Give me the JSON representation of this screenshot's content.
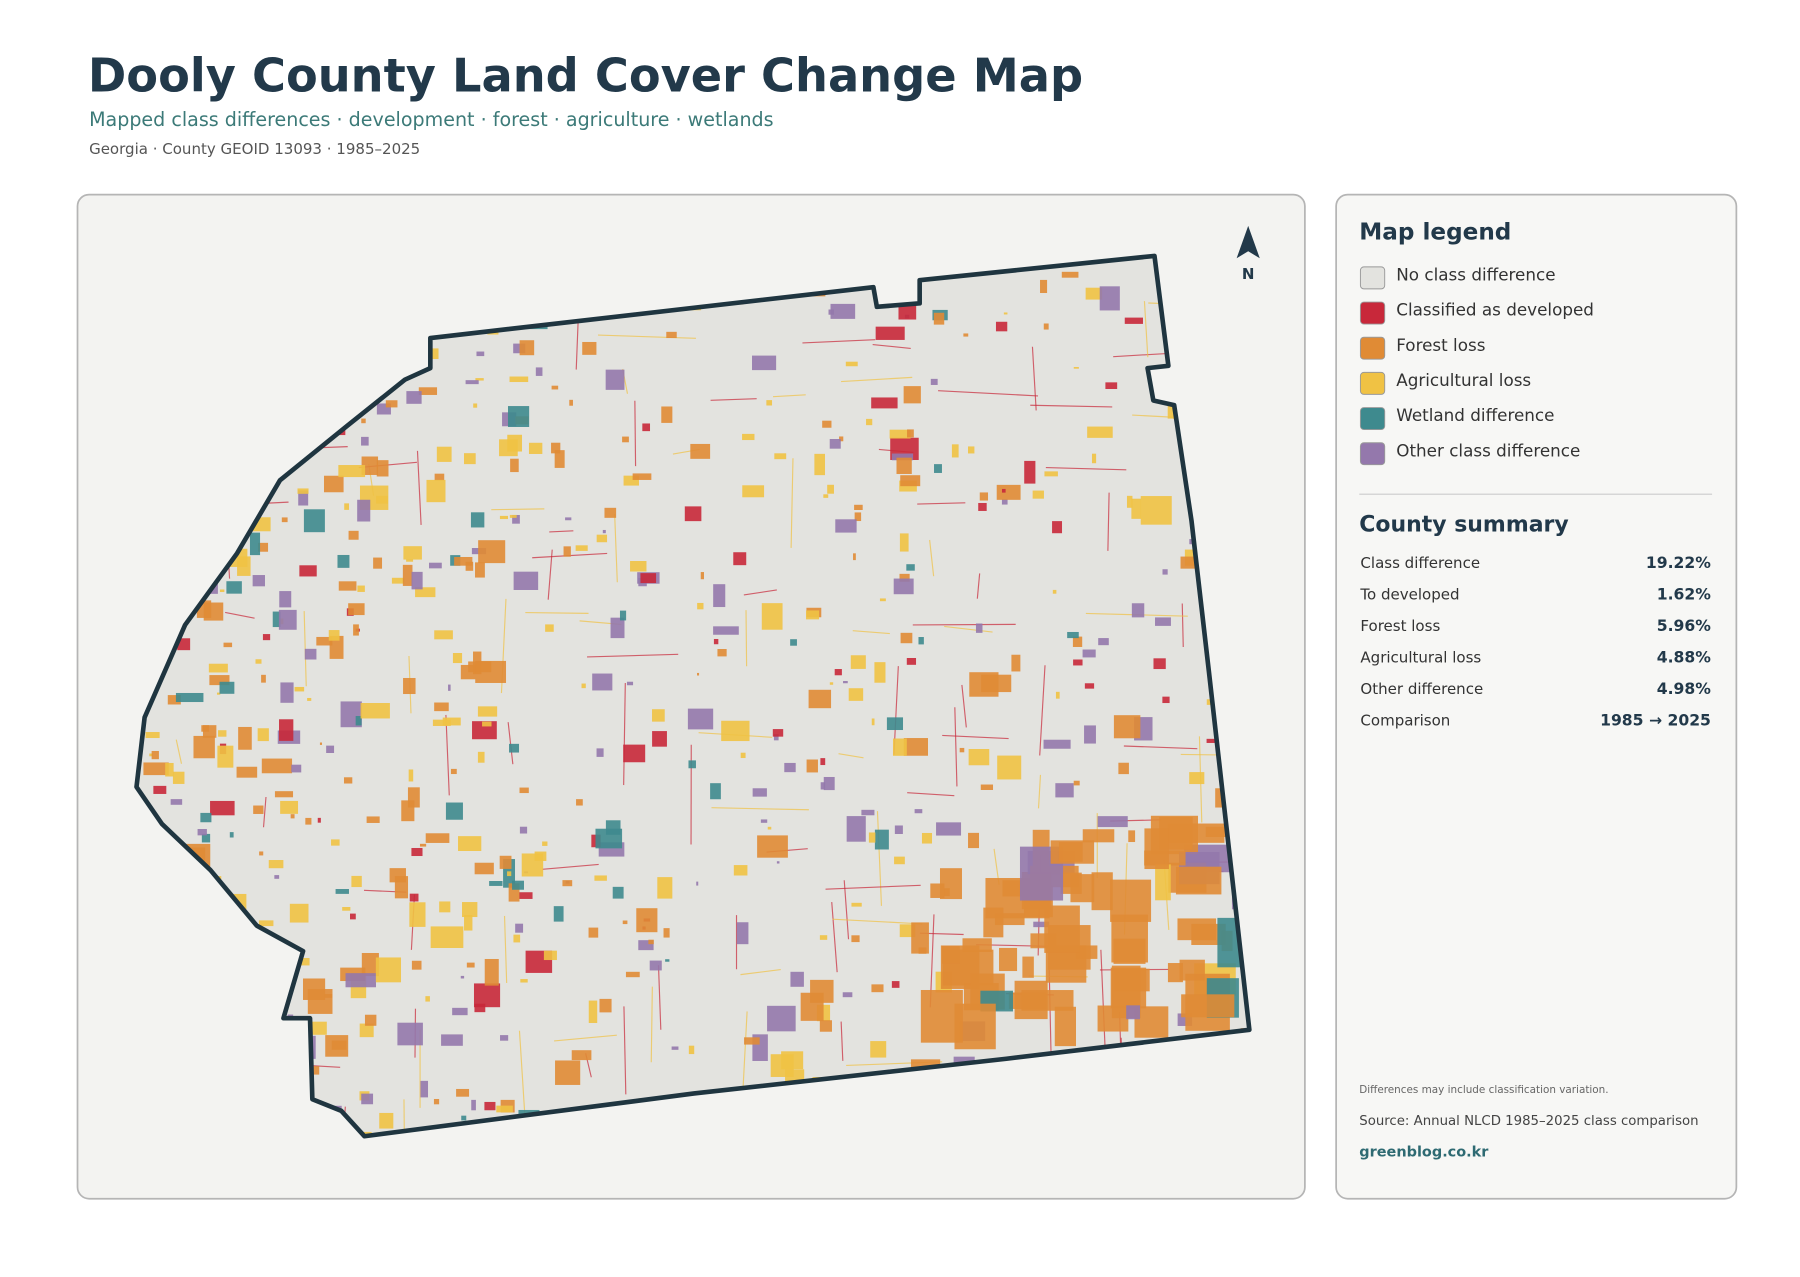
{
  "header": {
    "title": "Dooly County Land Cover Change Map",
    "subtitle": "Mapped class differences · development · forest · agriculture · wetlands",
    "meta": "Georgia · County GEOID 13093 · 1985–2025"
  },
  "map": {
    "north_label": "N"
  },
  "legend": {
    "title": "Map legend",
    "items": [
      {
        "label": "No class difference",
        "color": "#e3e3df"
      },
      {
        "label": "Classified as developed",
        "color": "#c8283a"
      },
      {
        "label": "Forest loss",
        "color": "#e08b35"
      },
      {
        "label": "Agricultural loss",
        "color": "#f0c244"
      },
      {
        "label": "Wetland difference",
        "color": "#3e8a8e"
      },
      {
        "label": "Other class difference",
        "color": "#9478ac"
      }
    ]
  },
  "summary": {
    "title": "County summary",
    "rows": [
      [
        "Class difference",
        "19.22%"
      ],
      [
        "To developed",
        "1.62%"
      ],
      [
        "Forest loss",
        "5.96%"
      ],
      [
        "Agricultural loss",
        "4.88%"
      ],
      [
        "Other difference",
        "4.98%"
      ],
      [
        "Comparison",
        "1985 → 2025"
      ]
    ]
  },
  "footer": {
    "note": "Differences may include classification variation.",
    "source": "Source: Annual NLCD 1985–2025 class comparison",
    "site": "greenblog.co.kr"
  }
}
